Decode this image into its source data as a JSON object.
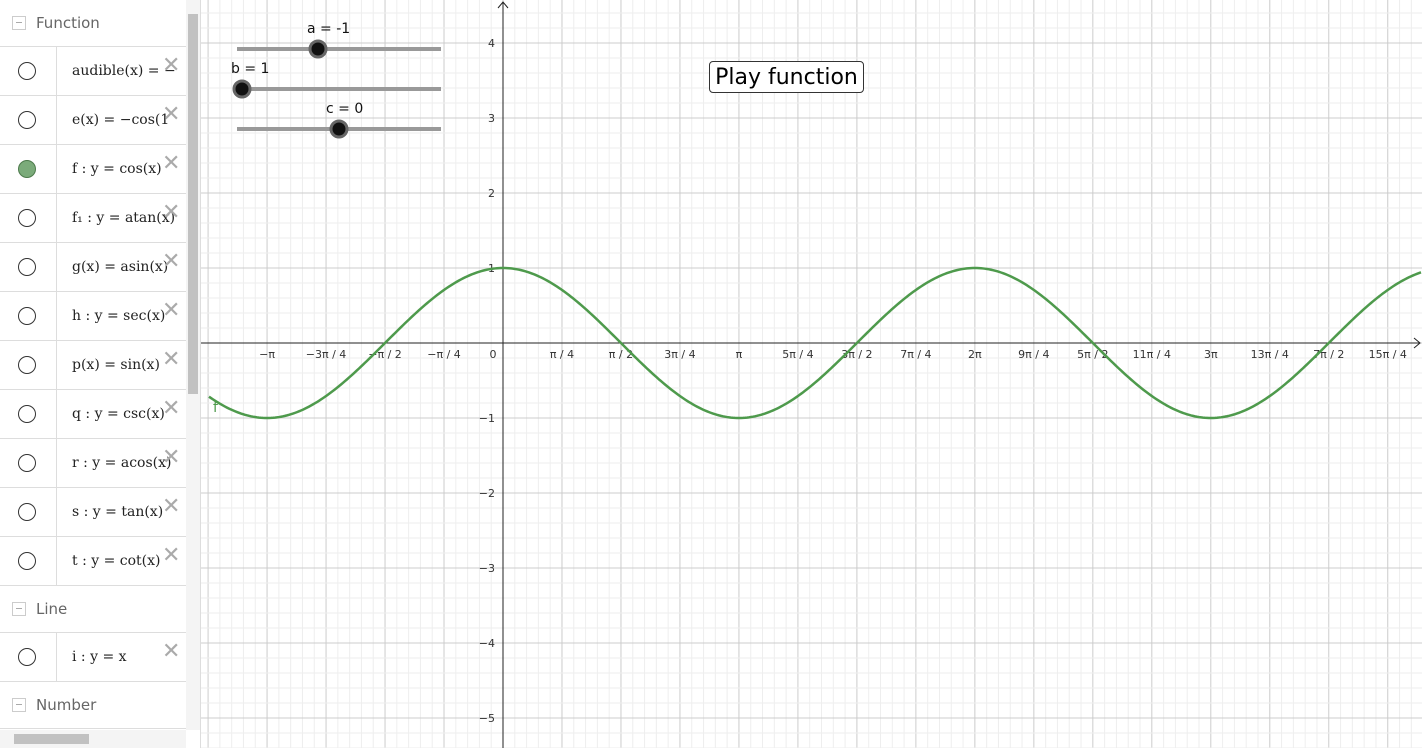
{
  "sidebar": {
    "groups": [
      {
        "title": "Function",
        "items": [
          "audible(x) = −",
          "e(x) = −cos(1",
          "f : y = cos(x)",
          "f₁ : y = atan(x)",
          "g(x) = asin(x)",
          "h : y = sec(x)",
          "p(x) = sin(x)",
          "q : y = csc(x)",
          "r : y = acos(x)",
          "s : y = tan(x)",
          "t : y = cot(x)"
        ]
      },
      {
        "title": "Line",
        "items": [
          "i : y = x"
        ]
      },
      {
        "title": "Number",
        "items": []
      }
    ]
  },
  "sliders": [
    "a = -1",
    "b = 1",
    "c = 0"
  ],
  "button": "Play function",
  "curve_label": "f",
  "axes": {
    "x_labels": [
      "−π",
      "−3π / 4",
      "−π / 2",
      "−π / 4",
      "0",
      "π / 4",
      "π / 2",
      "3π / 4",
      "π",
      "5π / 4",
      "3π / 2",
      "7π / 4",
      "2π",
      "9π / 4",
      "5π / 2",
      "11π / 4",
      "3π",
      "13π / 4",
      "7π / 2",
      "15π / 4"
    ],
    "y_labels": [
      "4",
      "3",
      "2",
      "1",
      "−1",
      "−2",
      "−3",
      "−4",
      "−5"
    ]
  }
}
